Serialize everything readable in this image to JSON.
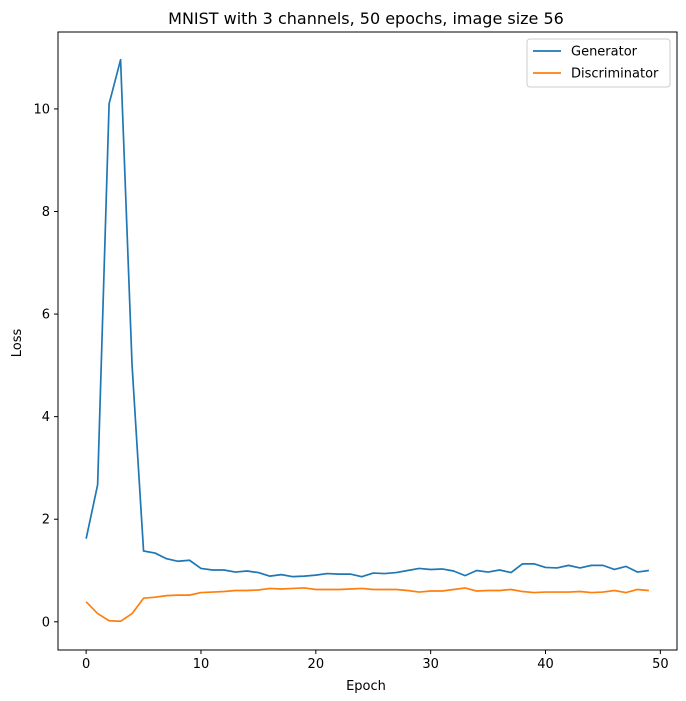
{
  "chart_data": {
    "type": "line",
    "title": "MNIST with 3 channels, 50 epochs, image size 56",
    "xlabel": "Epoch",
    "ylabel": "Loss",
    "xlim": [
      -2.45,
      51.45
    ],
    "ylim": [
      -0.55,
      11.5
    ],
    "xticks": [
      0,
      10,
      20,
      30,
      40,
      50
    ],
    "yticks": [
      0,
      2,
      4,
      6,
      8,
      10
    ],
    "grid": false,
    "legend": "top-right",
    "x": [
      0,
      1,
      2,
      3,
      4,
      5,
      6,
      7,
      8,
      9,
      10,
      11,
      12,
      13,
      14,
      15,
      16,
      17,
      18,
      19,
      20,
      21,
      22,
      23,
      24,
      25,
      26,
      27,
      28,
      29,
      30,
      31,
      32,
      33,
      34,
      35,
      36,
      37,
      38,
      39,
      40,
      41,
      42,
      43,
      44,
      45,
      46,
      47,
      48,
      49
    ],
    "series": [
      {
        "name": "Generator",
        "color": "#1f77b4",
        "values": [
          1.62,
          2.67,
          10.1,
          10.96,
          5.0,
          1.38,
          1.34,
          1.23,
          1.18,
          1.2,
          1.04,
          1.01,
          1.01,
          0.97,
          0.99,
          0.96,
          0.89,
          0.92,
          0.88,
          0.89,
          0.91,
          0.94,
          0.93,
          0.93,
          0.88,
          0.95,
          0.94,
          0.96,
          1.0,
          1.04,
          1.02,
          1.03,
          0.99,
          0.9,
          1.0,
          0.97,
          1.01,
          0.96,
          1.13,
          1.13,
          1.06,
          1.05,
          1.1,
          1.05,
          1.1,
          1.1,
          1.02,
          1.08,
          0.97,
          1.0
        ]
      },
      {
        "name": "Discriminator",
        "color": "#ff7f0e",
        "values": [
          0.39,
          0.16,
          0.02,
          0.01,
          0.16,
          0.46,
          0.48,
          0.51,
          0.52,
          0.52,
          0.57,
          0.58,
          0.59,
          0.61,
          0.61,
          0.62,
          0.65,
          0.64,
          0.65,
          0.66,
          0.63,
          0.63,
          0.63,
          0.64,
          0.65,
          0.63,
          0.63,
          0.63,
          0.61,
          0.58,
          0.6,
          0.6,
          0.63,
          0.66,
          0.6,
          0.61,
          0.61,
          0.63,
          0.59,
          0.57,
          0.58,
          0.58,
          0.58,
          0.59,
          0.57,
          0.58,
          0.61,
          0.57,
          0.63,
          0.61
        ]
      }
    ]
  }
}
